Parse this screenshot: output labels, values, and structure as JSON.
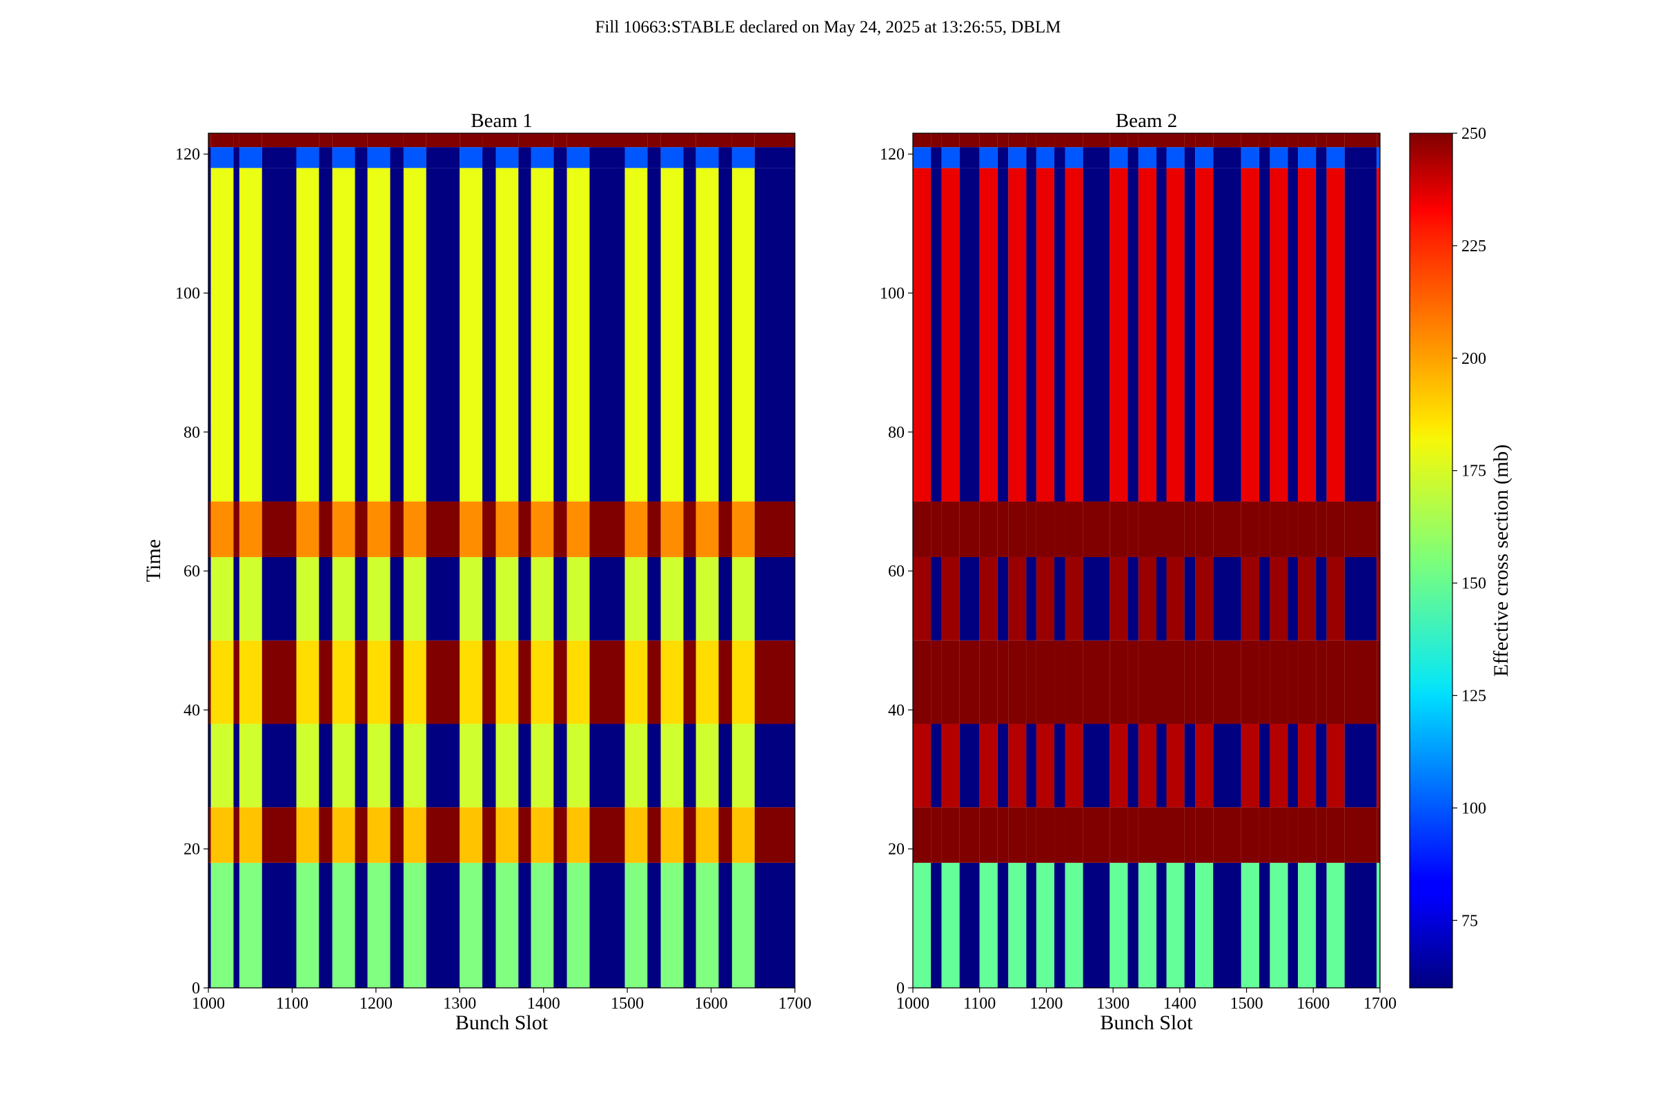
{
  "figure": {
    "suptitle": "Fill 10663:STABLE declared on May 24, 2025 at 13:26:55, DBLM"
  },
  "chart_data": [
    {
      "type": "heatmap",
      "title": "Beam 1",
      "xlabel": "Bunch Slot",
      "ylabel": "Time",
      "xlim": [
        1000,
        1700
      ],
      "ylim": [
        0,
        123
      ],
      "xticks": [
        1000,
        1100,
        1200,
        1300,
        1400,
        1500,
        1600,
        1700
      ],
      "yticks": [
        0,
        20,
        40,
        60,
        80,
        100,
        120
      ],
      "colormap": "jet",
      "clim": [
        60,
        250
      ],
      "filled_bunch_trains": [
        [
          1003,
          1030
        ],
        [
          1037,
          1064
        ],
        [
          1105,
          1132
        ],
        [
          1148,
          1175
        ],
        [
          1190,
          1217
        ],
        [
          1233,
          1260
        ],
        [
          1300,
          1327
        ],
        [
          1343,
          1370
        ],
        [
          1385,
          1412
        ],
        [
          1428,
          1455
        ],
        [
          1497,
          1524
        ],
        [
          1540,
          1567
        ],
        [
          1582,
          1609
        ],
        [
          1625,
          1652
        ]
      ],
      "row_bands": [
        {
          "t": [
            0,
            18
          ],
          "trains": 155,
          "gaps": 60
        },
        {
          "t": [
            18,
            26
          ],
          "trains": 190,
          "gaps": 250
        },
        {
          "t": [
            26,
            38
          ],
          "trains": 170,
          "gaps": 60
        },
        {
          "t": [
            38,
            50
          ],
          "trains": 185,
          "gaps": 250
        },
        {
          "t": [
            50,
            62
          ],
          "trains": 170,
          "gaps": 60
        },
        {
          "t": [
            62,
            70
          ],
          "trains": 200,
          "gaps": 250
        },
        {
          "t": [
            70,
            118
          ],
          "trains": 175,
          "gaps": 60
        },
        {
          "t": [
            118,
            121
          ],
          "trains": 100,
          "gaps": 60
        },
        {
          "t": [
            121,
            123
          ],
          "trains": 250,
          "gaps": 250
        }
      ]
    },
    {
      "type": "heatmap",
      "title": "Beam 2",
      "xlabel": "Bunch Slot",
      "ylabel": "",
      "xlim": [
        1000,
        1700
      ],
      "ylim": [
        0,
        123
      ],
      "xticks": [
        1000,
        1100,
        1200,
        1300,
        1400,
        1500,
        1600,
        1700
      ],
      "yticks": [
        0,
        20,
        40,
        60,
        80,
        100,
        120
      ],
      "colormap": "jet",
      "clim": [
        60,
        250
      ],
      "filled_bunch_trains": [
        [
          1000,
          1027
        ],
        [
          1043,
          1070
        ],
        [
          1100,
          1127
        ],
        [
          1143,
          1170
        ],
        [
          1185,
          1212
        ],
        [
          1228,
          1255
        ],
        [
          1295,
          1322
        ],
        [
          1338,
          1365
        ],
        [
          1380,
          1407
        ],
        [
          1423,
          1450
        ],
        [
          1492,
          1519
        ],
        [
          1535,
          1562
        ],
        [
          1577,
          1604
        ],
        [
          1620,
          1647
        ],
        [
          1695,
          1700
        ]
      ],
      "row_bands": [
        {
          "t": [
            0,
            18
          ],
          "trains": 150,
          "gaps": 60
        },
        {
          "t": [
            18,
            26
          ],
          "trains": 250,
          "gaps": 250
        },
        {
          "t": [
            26,
            38
          ],
          "trains": 240,
          "gaps": 60
        },
        {
          "t": [
            38,
            50
          ],
          "trains": 250,
          "gaps": 250
        },
        {
          "t": [
            50,
            62
          ],
          "trains": 245,
          "gaps": 60
        },
        {
          "t": [
            62,
            70
          ],
          "trains": 250,
          "gaps": 250
        },
        {
          "t": [
            70,
            118
          ],
          "trains": 230,
          "gaps": 60
        },
        {
          "t": [
            118,
            121
          ],
          "trains": 100,
          "gaps": 60
        },
        {
          "t": [
            121,
            123
          ],
          "trains": 250,
          "gaps": 250
        }
      ]
    }
  ],
  "colorbar": {
    "label": "Effective cross section (mb)",
    "range": [
      60,
      250
    ],
    "ticks": [
      75,
      100,
      125,
      150,
      175,
      200,
      225,
      250
    ]
  }
}
